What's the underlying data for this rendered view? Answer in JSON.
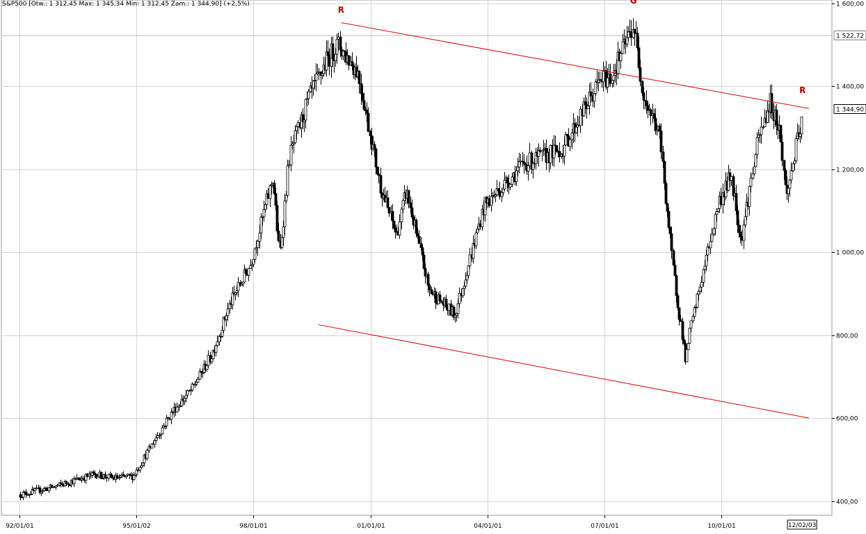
{
  "legend": {
    "text": "S&P500 [Otw.: 1 312,45  Max: 1 345,34  Min: 1 312,45  Zam.: 1 344,90] (+2,5%)"
  },
  "chart_data": {
    "type": "candlestick",
    "title": "S&P500",
    "xlabel": "",
    "ylabel": "",
    "ylim": [
      360,
      1610
    ],
    "y_ticks": [
      400,
      600,
      800,
      1000,
      1200,
      1400,
      1600
    ],
    "y_tick_labels": [
      "400,00",
      "600,00",
      "800,00",
      "1 000,00",
      "1 200,00",
      "1 400,00",
      "1 600,00"
    ],
    "x_range": [
      "1992-01-01",
      "2012-03-31"
    ],
    "x_ticks": [
      "1992-01-01",
      "1995-01-02",
      "1998-01-01",
      "2001-01-01",
      "2004-01-01",
      "2007-01-01",
      "2010-01-01"
    ],
    "x_tick_labels": [
      "92/01/01",
      "95/01/02",
      "98/01/01",
      "01/01/01",
      "04/01/01",
      "07/01/01",
      "10/01/01"
    ],
    "last_date_label": "12/02/03",
    "grid": true,
    "reference_line": {
      "value": 1522.72,
      "label": "1 522,72"
    },
    "current_value": {
      "value": 1344.9,
      "label": "1 344,90"
    },
    "trendlines": [
      {
        "name": "resistance",
        "from": {
          "date": "2000-04-01",
          "value": 1553
        },
        "to": {
          "date": "2012-03-31",
          "value": 1346
        }
      },
      {
        "name": "support",
        "from": {
          "date": "1999-09-01",
          "value": 825
        },
        "to": {
          "date": "2012-03-31",
          "value": 600
        }
      }
    ],
    "annotations": [
      {
        "label": "R",
        "date": "2000-04-01",
        "value": 1553
      },
      {
        "label": "G",
        "date": "2007-10-01",
        "value": 1576
      },
      {
        "label": "R",
        "date": "2012-02-01",
        "value": 1360
      }
    ],
    "anchors": [
      [
        "1992-01-01",
        415
      ],
      [
        "1992-12-01",
        435
      ],
      [
        "1993-12-01",
        465
      ],
      [
        "1994-06-01",
        455
      ],
      [
        "1994-12-01",
        460
      ],
      [
        "1995-06-01",
        540
      ],
      [
        "1995-12-01",
        615
      ],
      [
        "1996-06-01",
        670
      ],
      [
        "1996-12-01",
        750
      ],
      [
        "1997-06-01",
        880
      ],
      [
        "1997-12-01",
        970
      ],
      [
        "1998-07-01",
        1180
      ],
      [
        "1998-09-01",
        990
      ],
      [
        "1998-12-01",
        1230
      ],
      [
        "1999-06-01",
        1370
      ],
      [
        "1999-12-01",
        1469
      ],
      [
        "2000-03-01",
        1500
      ],
      [
        "2000-09-01",
        1436
      ],
      [
        "2000-12-01",
        1320
      ],
      [
        "2001-04-01",
        1160
      ],
      [
        "2001-09-01",
        1040
      ],
      [
        "2001-12-01",
        1148
      ],
      [
        "2002-07-01",
        910
      ],
      [
        "2002-10-01",
        885
      ],
      [
        "2003-03-01",
        848
      ],
      [
        "2003-12-01",
        1112
      ],
      [
        "2004-12-01",
        1212
      ],
      [
        "2005-12-01",
        1248
      ],
      [
        "2006-12-01",
        1418
      ],
      [
        "2007-03-01",
        1420
      ],
      [
        "2007-10-01",
        1549
      ],
      [
        "2008-01-01",
        1378
      ],
      [
        "2008-06-01",
        1280
      ],
      [
        "2008-10-01",
        968
      ],
      [
        "2009-02-01",
        735
      ],
      [
        "2009-03-01",
        797
      ],
      [
        "2009-12-01",
        1115
      ],
      [
        "2010-04-01",
        1186
      ],
      [
        "2010-07-01",
        1030
      ],
      [
        "2010-12-01",
        1258
      ],
      [
        "2011-04-01",
        1363
      ],
      [
        "2011-07-01",
        1292
      ],
      [
        "2011-09-01",
        1131
      ],
      [
        "2011-12-01",
        1257
      ],
      [
        "2012-03-01",
        1345
      ]
    ],
    "colors": {
      "background": "#ffffff",
      "grid": "#d4d4d4",
      "candle": "#000000",
      "trendline": "#d90000",
      "annotation": "#b20000",
      "axis_text": "#000000"
    }
  }
}
